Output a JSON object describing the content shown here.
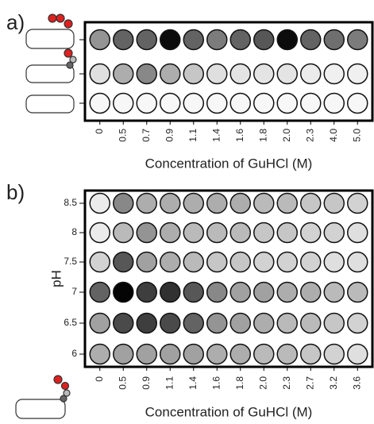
{
  "chart_data": [
    {
      "type": "dotmatrix",
      "panel_label": "a)",
      "xlabel": "Concentration of GuHCl (M)",
      "categories": [
        "0",
        "0.5",
        "0.7",
        "0.9",
        "1.1",
        "1.4",
        "1.6",
        "1.8",
        "2.0",
        "2.3",
        "4.0",
        "5.0"
      ],
      "rows": [
        {
          "values": [
            40,
            60,
            60,
            95,
            60,
            50,
            60,
            65,
            95,
            60,
            55,
            50
          ]
        },
        {
          "values": [
            10,
            30,
            45,
            30,
            20,
            10,
            8,
            8,
            8,
            5,
            3,
            3
          ]
        },
        {
          "values": [
            0,
            0,
            0,
            0,
            0,
            0,
            0,
            0,
            0,
            0,
            0,
            0
          ]
        }
      ]
    },
    {
      "type": "dotmatrix",
      "panel_label": "b)",
      "xlabel": "Concentration of GuHCl (M)",
      "ylabel": "pH",
      "categories": [
        "0",
        "0.5",
        "0.9",
        "1.1",
        "1.4",
        "1.6",
        "1.8",
        "2.0",
        "2.3",
        "2.7",
        "3.2",
        "3.6"
      ],
      "rows": [
        {
          "label": "8.5",
          "values": [
            5,
            45,
            30,
            30,
            30,
            30,
            30,
            25,
            25,
            20,
            20,
            15
          ]
        },
        {
          "label": "8",
          "values": [
            5,
            25,
            40,
            30,
            25,
            25,
            25,
            20,
            20,
            15,
            15,
            10
          ]
        },
        {
          "label": "7.5",
          "values": [
            15,
            65,
            35,
            30,
            25,
            20,
            20,
            15,
            15,
            15,
            10,
            10
          ]
        },
        {
          "label": "7",
          "values": [
            60,
            98,
            75,
            80,
            65,
            45,
            35,
            35,
            30,
            30,
            25,
            25
          ]
        },
        {
          "label": "6.5",
          "values": [
            35,
            70,
            75,
            70,
            60,
            40,
            35,
            30,
            25,
            25,
            20,
            15
          ]
        },
        {
          "label": "6",
          "values": [
            30,
            35,
            35,
            35,
            35,
            30,
            30,
            25,
            25,
            20,
            15,
            10
          ]
        }
      ]
    }
  ]
}
